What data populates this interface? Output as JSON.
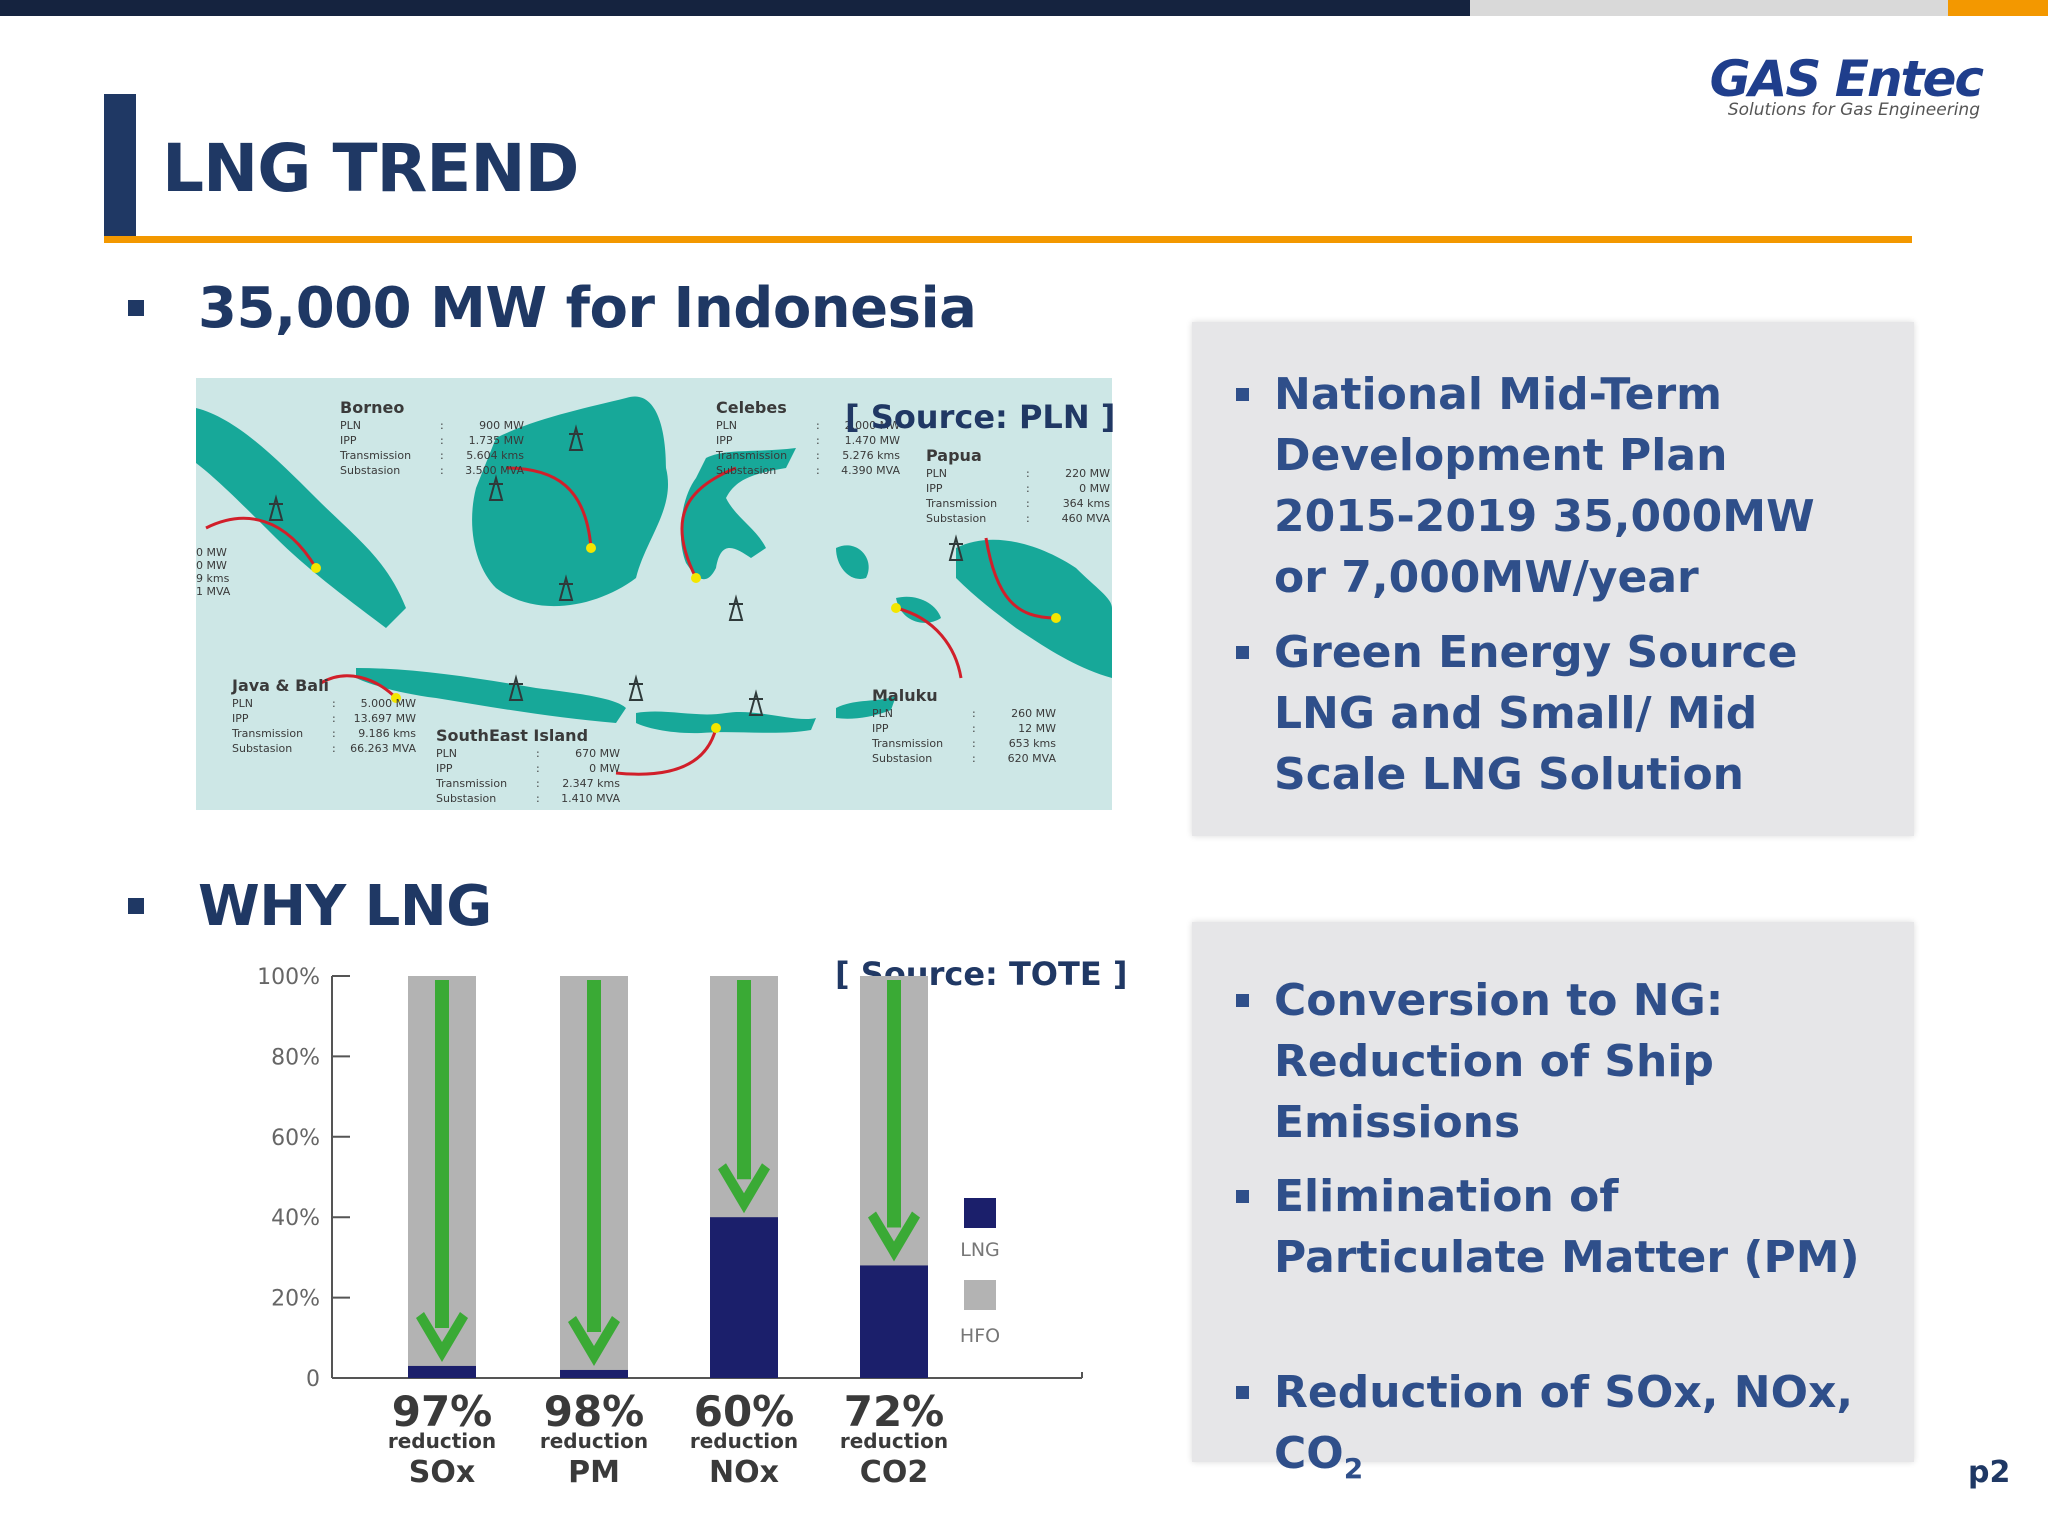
{
  "logo": {
    "brand_gas": "GAS",
    "brand_entec": "Entec",
    "tagline": "Solutions for Gas Engineering"
  },
  "title": "LNG TREND",
  "section1": {
    "heading": "35,000 MW for Indonesia",
    "source": "[ Source: PLN ]",
    "map_regions": [
      {
        "name": "Borneo",
        "lines": [
          [
            "PLN",
            ":",
            "900 MW"
          ],
          [
            "IPP",
            ":",
            "1.735 MW"
          ],
          [
            "Transmission",
            ":",
            "5.604 kms"
          ],
          [
            "Substasion",
            ":",
            "3.500 MVA"
          ]
        ]
      },
      {
        "name": "Celebes",
        "lines": [
          [
            "PLN",
            ":",
            "2.000 MW"
          ],
          [
            "IPP",
            ":",
            "1.470 MW"
          ],
          [
            "Transmission",
            ":",
            "5.276 kms"
          ],
          [
            "Substasion",
            ":",
            "4.390 MVA"
          ]
        ]
      },
      {
        "name": "Papua",
        "lines": [
          [
            "PLN",
            ":",
            "220 MW"
          ],
          [
            "IPP",
            ":",
            "0 MW"
          ],
          [
            "Transmission",
            ":",
            "364 kms"
          ],
          [
            "Substasion",
            ":",
            "460 MVA"
          ]
        ]
      },
      {
        "name": "Java & Bali",
        "lines": [
          [
            "PLN",
            ":",
            "5.000 MW"
          ],
          [
            "IPP",
            ":",
            "13.697 MW"
          ],
          [
            "Transmission",
            ":",
            "9.186 kms"
          ],
          [
            "Substasion",
            ":",
            "66.263 MVA"
          ]
        ]
      },
      {
        "name": "SouthEast Island",
        "lines": [
          [
            "PLN",
            ":",
            "670 MW"
          ],
          [
            "IPP",
            ":",
            "0 MW"
          ],
          [
            "Transmission",
            ":",
            "2.347 kms"
          ],
          [
            "Substasion",
            ":",
            "1.410 MVA"
          ]
        ]
      },
      {
        "name": "Maluku",
        "lines": [
          [
            "PLN",
            ":",
            "260 MW"
          ],
          [
            "IPP",
            ":",
            "12 MW"
          ],
          [
            "Transmission",
            ":",
            "653 kms"
          ],
          [
            "Substasion",
            ":",
            "620 MVA"
          ]
        ]
      }
    ],
    "map_left_cut": [
      "0 MW",
      "0 MW",
      "9 kms",
      "1 MVA"
    ],
    "bullets": [
      "National Mid-Term Development Plan 2015-2019 35,000MW or 7,000MW/year",
      "Green Energy Source LNG and Small/ Mid Scale LNG Solution"
    ]
  },
  "section2": {
    "heading": "WHY LNG",
    "source": "[ Source: TOTE ]",
    "bullets": [
      {
        "text": "Conversion to NG: Reduction of Ship Emissions",
        "sub": ""
      },
      {
        "text": "Elimination of Particulate Matter (PM)",
        "sub": ""
      },
      {
        "text": "Reduction of SOx, NOx, CO",
        "sub": "2"
      }
    ]
  },
  "chart_data": {
    "type": "bar",
    "categories": [
      "SOx",
      "PM",
      "NOx",
      "CO2"
    ],
    "series": [
      {
        "name": "LNG",
        "values": [
          3,
          2,
          40,
          28
        ]
      },
      {
        "name": "HFO",
        "values": [
          100,
          100,
          100,
          100
        ]
      }
    ],
    "reductions": [
      "97%",
      "98%",
      "60%",
      "72%"
    ],
    "reduction_word": "reduction",
    "y_ticks": [
      "100%",
      "80%",
      "60%",
      "40%",
      "20%",
      "0"
    ],
    "ylim": [
      0,
      100
    ],
    "colors": {
      "LNG": "#1b1f6b",
      "HFO": "#b3b3b3",
      "arrow": "#3aaa35"
    }
  },
  "page_number": "p2"
}
